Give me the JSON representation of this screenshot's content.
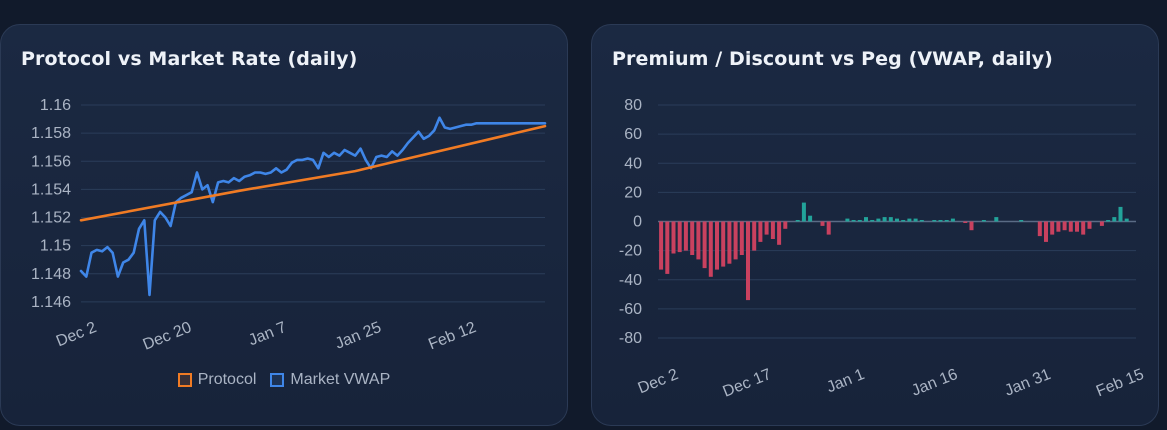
{
  "chart_data": [
    {
      "type": "line",
      "title": "Protocol vs Market Rate (daily)",
      "ylim": [
        1.145,
        1.16
      ],
      "yticks": [
        1.146,
        1.148,
        1.15,
        1.152,
        1.154,
        1.156,
        1.158,
        1.16
      ],
      "ytick_labels": [
        "1.146",
        "1.148",
        "1.15",
        "1.152",
        "1.154",
        "1.156",
        "1.158",
        "1.16"
      ],
      "xticks": [
        "Dec 2",
        "Dec 20",
        "Jan 7",
        "Jan 25",
        "Feb 12"
      ],
      "xtick_index": [
        2,
        20,
        38,
        56,
        74
      ],
      "grid": true,
      "legend_position": "bottom",
      "series": [
        {
          "name": "Protocol",
          "color": "#f07b24",
          "x": [
            0,
            30,
            52,
            62,
            88
          ],
          "values": [
            1.1518,
            1.1539,
            1.1553,
            1.1562,
            1.1585
          ]
        },
        {
          "name": "Market VWAP",
          "color": "#3f86e8",
          "x": [
            0,
            1,
            2,
            3,
            4,
            5,
            6,
            7,
            8,
            9,
            10,
            11,
            12,
            13,
            14,
            15,
            16,
            17,
            18,
            19,
            20,
            21,
            22,
            23,
            24,
            25,
            26,
            27,
            28,
            29,
            30,
            31,
            32,
            33,
            34,
            35,
            36,
            37,
            38,
            39,
            40,
            41,
            42,
            43,
            44,
            45,
            46,
            47,
            48,
            49,
            50,
            51,
            52,
            53,
            54,
            55,
            56,
            57,
            58,
            59,
            60,
            61,
            62,
            63,
            64,
            65,
            66,
            67,
            68,
            69,
            70,
            71,
            72,
            73,
            74,
            75,
            76,
            77,
            78,
            79,
            80,
            81,
            82,
            83,
            84,
            85,
            86,
            87,
            88
          ],
          "values": [
            1.1482,
            1.1478,
            1.1495,
            1.1497,
            1.1496,
            1.1499,
            1.1495,
            1.1478,
            1.1488,
            1.149,
            1.1495,
            1.1512,
            1.1518,
            1.1465,
            1.1518,
            1.1524,
            1.152,
            1.1514,
            1.1531,
            1.1534,
            1.1536,
            1.1538,
            1.1552,
            1.154,
            1.1543,
            1.1531,
            1.1545,
            1.1546,
            1.1545,
            1.1548,
            1.1546,
            1.1549,
            1.155,
            1.1552,
            1.1552,
            1.1551,
            1.1552,
            1.1555,
            1.1552,
            1.1554,
            1.1559,
            1.1561,
            1.1561,
            1.1562,
            1.1561,
            1.1555,
            1.1566,
            1.1563,
            1.1566,
            1.1564,
            1.1568,
            1.1566,
            1.1564,
            1.1569,
            1.1561,
            1.1555,
            1.1563,
            1.1564,
            1.1563,
            1.1567,
            1.1564,
            1.1568,
            1.1573,
            1.1577,
            1.1581,
            1.1576,
            1.1578,
            1.1582,
            1.1591,
            1.1584,
            1.1583,
            1.1584,
            1.1585,
            1.1586,
            1.1586,
            1.1587,
            1.1587,
            1.1587,
            1.1587,
            1.1587,
            1.1587,
            1.1587,
            1.1587,
            1.1587,
            1.1587,
            1.1587,
            1.1587,
            1.1587,
            1.1587
          ]
        }
      ]
    },
    {
      "type": "bar",
      "title": "Premium / Discount vs Peg (VWAP, daily)",
      "ylim": [
        -80,
        80
      ],
      "yticks": [
        -80,
        -60,
        -40,
        -20,
        0,
        20,
        40,
        60,
        80
      ],
      "ytick_labels": [
        "-80",
        "-60",
        "-40",
        "-20",
        "0",
        "20",
        "40",
        "60",
        "80"
      ],
      "xticks": [
        "Dec 2",
        "Dec 17",
        "Jan 1",
        "Jan 16",
        "Jan 31",
        "Feb 15"
      ],
      "xtick_index": [
        1,
        16,
        31,
        46,
        61,
        76
      ],
      "grid": true,
      "positive_color": "#22a39a",
      "negative_color": "#c9415f",
      "values": [
        -33,
        -36,
        -22,
        -21,
        -20,
        -23,
        -26,
        -32,
        -38,
        -33,
        -31,
        -29,
        -26,
        -23,
        -54,
        -20,
        -14,
        -9,
        -12,
        -16,
        -5,
        0,
        1,
        13,
        4,
        0,
        -3,
        -9,
        0,
        0,
        2,
        1,
        1,
        3,
        1,
        2,
        3,
        3,
        2,
        1,
        2,
        2,
        1,
        0,
        1,
        1,
        1,
        2,
        0,
        -1,
        -6,
        0,
        1,
        0,
        3,
        0,
        0,
        0,
        1,
        0,
        0,
        -10,
        -14,
        -9,
        -7,
        -6,
        -7,
        -7,
        -9,
        -5,
        0,
        -3,
        1,
        3,
        10,
        2,
        0
      ]
    }
  ]
}
